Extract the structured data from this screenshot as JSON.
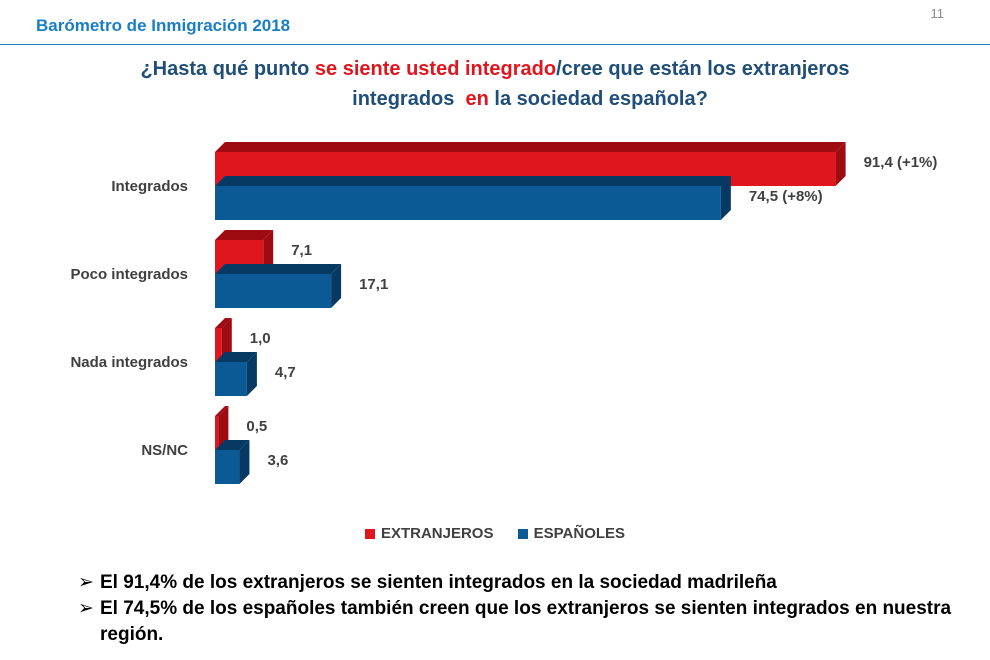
{
  "header": {
    "title": "Barómetro de Inmigración 2018",
    "page_number": "11"
  },
  "question": {
    "part1": "¿Hasta qué punto ",
    "highlight1": "se siente usted integrado",
    "part2": "/cree que están los extranjeros",
    "part3": "integrados  ",
    "highlight2": "en",
    "part4": " la sociedad española?"
  },
  "chart_data": {
    "type": "bar",
    "orientation": "horizontal",
    "categories": [
      "Integrados",
      "Poco integrados",
      "Nada integrados",
      "NS/NC"
    ],
    "series": [
      {
        "name": "EXTRANJEROS",
        "color": "#e0161f",
        "values": [
          91.4,
          7.1,
          1.0,
          0.5
        ],
        "labels": [
          "91,4 (+1%)",
          "7,1",
          "1,0",
          "0,5"
        ]
      },
      {
        "name": "ESPAÑOLES",
        "color": "#0b5a96",
        "values": [
          74.5,
          17.1,
          4.7,
          3.6
        ],
        "labels": [
          "74,5 (+8%)",
          "17,1",
          "4,7",
          "3,6"
        ]
      }
    ],
    "xlim": [
      0,
      100
    ],
    "grid": false,
    "legend_position": "bottom"
  },
  "colors": {
    "accent": "#1a7ec4",
    "red": "#e0161f",
    "blue": "#0b5a96"
  },
  "bullets": {
    "arrow": "➢",
    "items": [
      "El 91,4% de los extranjeros se sienten integrados en la sociedad madrileña",
      "El 74,5% de los españoles también creen que los extranjeros se sienten integrados en nuestra región."
    ]
  }
}
